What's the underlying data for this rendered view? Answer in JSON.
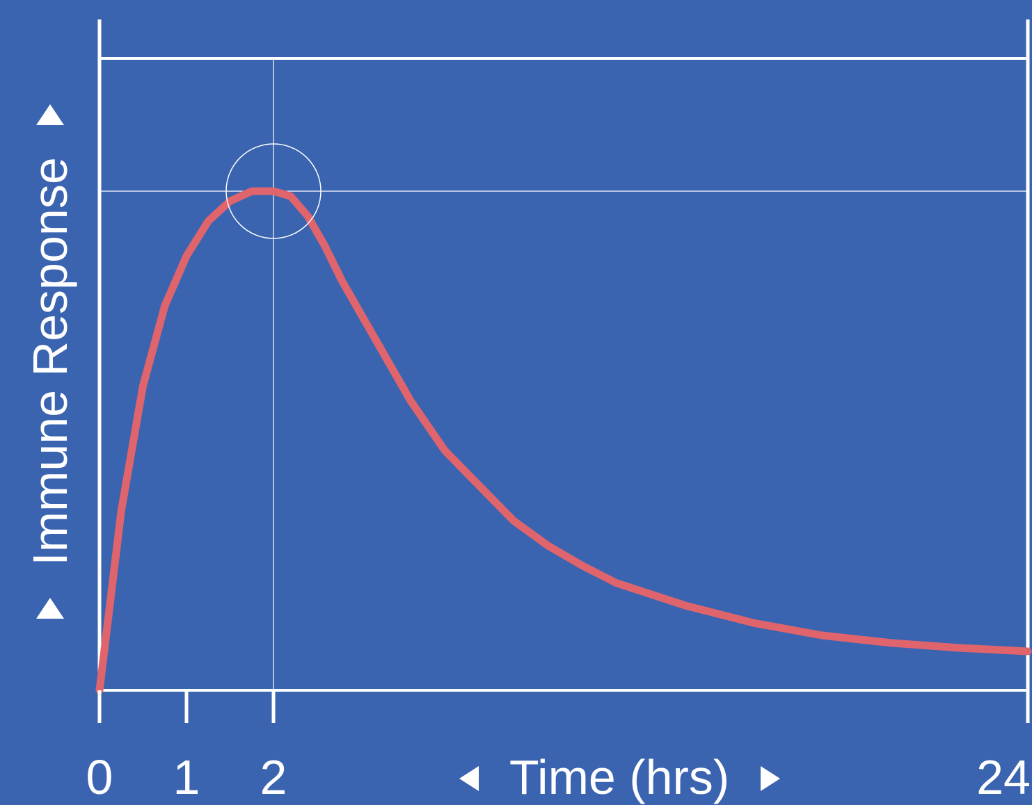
{
  "chart_data": {
    "type": "line",
    "xlabel": "Time (hrs)",
    "ylabel": "Immune Response",
    "xlim": [
      0,
      24
    ],
    "ylim": [
      0,
      1
    ],
    "x_ticks": [
      0,
      1,
      2,
      24
    ],
    "x_tick_labels": [
      "0",
      "1",
      "2",
      "24"
    ],
    "series": [
      {
        "color": "#e0646c",
        "x": [
          0,
          0.25,
          0.5,
          0.75,
          1,
          1.25,
          1.5,
          1.75,
          2,
          2.5,
          3,
          3.5,
          4,
          5,
          6,
          7,
          8,
          9,
          10,
          11,
          12,
          14,
          16,
          18,
          20,
          22,
          24
        ],
        "values": [
          0.0,
          0.36,
          0.61,
          0.77,
          0.87,
          0.94,
          0.98,
          1.0,
          1.0,
          0.99,
          0.95,
          0.89,
          0.82,
          0.7,
          0.58,
          0.48,
          0.41,
          0.34,
          0.29,
          0.25,
          0.215,
          0.17,
          0.135,
          0.11,
          0.095,
          0.085,
          0.078
        ]
      }
    ],
    "peak": {
      "x": 2,
      "y": 1.0
    },
    "colors": {
      "background": "#3a64b0",
      "axis": "#ffffff",
      "curve": "#e0646c"
    }
  },
  "icons": {
    "y_up": "triangle-up-icon",
    "y_down": "triangle-down-icon",
    "x_left": "triangle-left-icon",
    "x_right": "triangle-right-icon"
  }
}
